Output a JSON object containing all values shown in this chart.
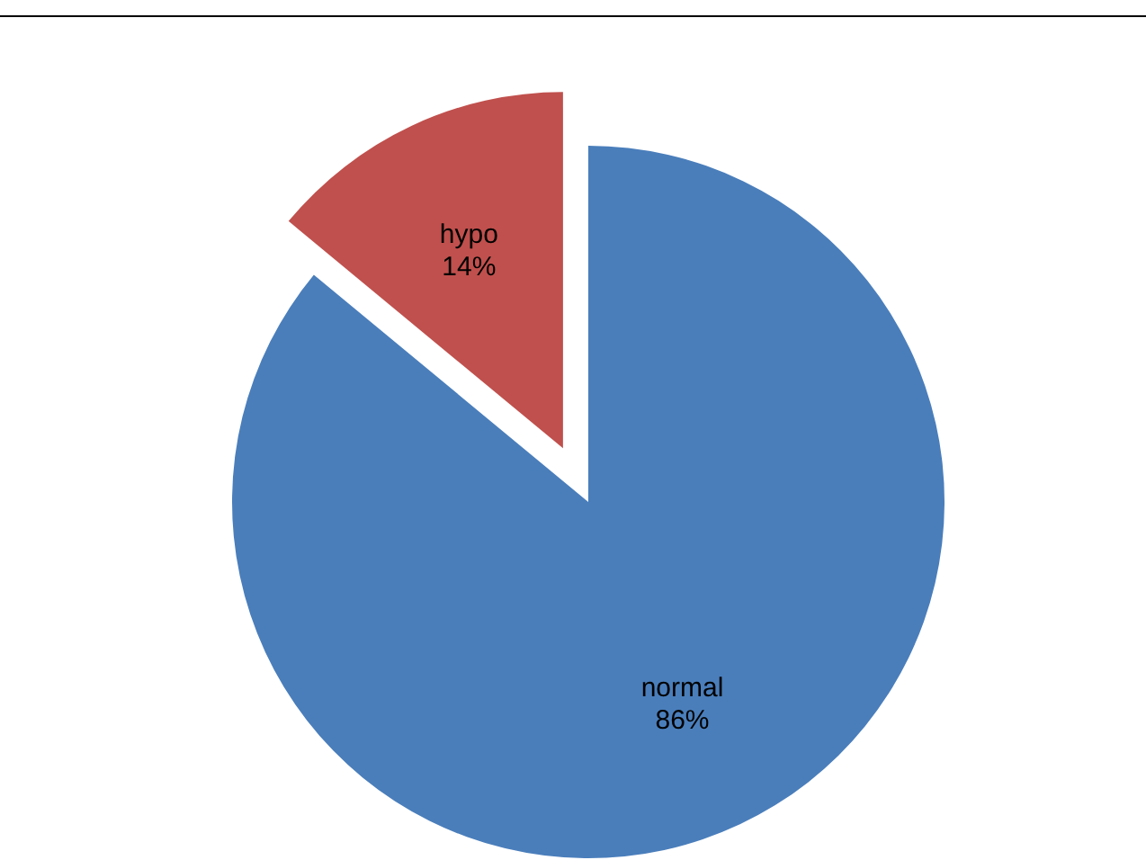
{
  "chart_data": {
    "type": "pie",
    "categories": [
      "normal",
      "hypo"
    ],
    "values": [
      86,
      14
    ],
    "colors": [
      "#4a7ebb",
      "#c0504d"
    ],
    "value_labels": [
      "86%",
      "14%"
    ]
  }
}
